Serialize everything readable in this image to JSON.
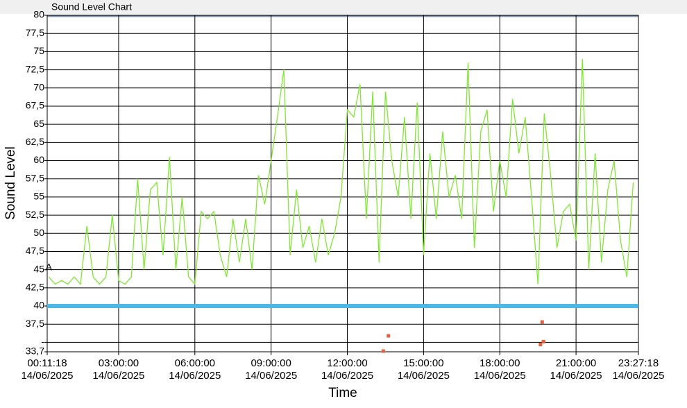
{
  "chart_data": {
    "type": "line",
    "title": "Sound Level Chart",
    "x_label": "Time",
    "y_label": "Sound Level",
    "xlim": [
      "2025-06-14T00:11:18",
      "2025-06-14T23:27:18"
    ],
    "xticks": [
      {
        "value": "2025-06-14T00:11:18",
        "label": "00:11:18\n14/06/2025"
      },
      {
        "value": "2025-06-14T03:00:00",
        "label": "03:00:00\n14/06/2025"
      },
      {
        "value": "2025-06-14T06:00:00",
        "label": "06:00:00\n14/06/2025"
      },
      {
        "value": "2025-06-14T09:00:00",
        "label": "09:00:00\n14/06/2025"
      },
      {
        "value": "2025-06-14T12:00:00",
        "label": "12:00:00\n14/06/2025"
      },
      {
        "value": "2025-06-14T15:00:00",
        "label": "15:00:00\n14/06/2025"
      },
      {
        "value": "2025-06-14T18:00:00",
        "label": "18:00:00\n14/06/2025"
      },
      {
        "value": "2025-06-14T21:00:00",
        "label": "21:00:00\n14/06/2025"
      },
      {
        "value": "2025-06-14T23:27:18",
        "label": "23:27:18\n14/06/2025"
      }
    ],
    "ylim": [
      33.7,
      80
    ],
    "yticks": [
      {
        "value": 33.7,
        "label": "33,7"
      },
      {
        "value": 35,
        "label": "-"
      },
      {
        "value": 37.5,
        "label": "37,5"
      },
      40,
      {
        "value": 42.5,
        "label": "42,5"
      },
      45,
      {
        "value": 47.5,
        "label": "47,5"
      },
      50,
      {
        "value": 52.5,
        "label": "52,5"
      },
      55,
      {
        "value": 57.5,
        "label": "57,5"
      },
      60,
      {
        "value": 62.5,
        "label": "62,5"
      },
      65,
      {
        "value": 67.5,
        "label": "67,5"
      },
      70,
      {
        "value": 72.5,
        "label": "72,5"
      },
      75,
      {
        "value": 77.5,
        "label": "77,5"
      },
      80
    ],
    "grid": true,
    "threshold": {
      "value": 40,
      "color": "#4cb8e8"
    },
    "annotations": [
      {
        "text": "A",
        "x": "2025-06-14T00:15:00",
        "y": 44.5
      }
    ],
    "color": "#7ee832",
    "x": [
      "2025-06-14T00:15:00",
      "2025-06-14T00:30:00",
      "2025-06-14T00:45:00",
      "2025-06-14T01:00:00",
      "2025-06-14T01:15:00",
      "2025-06-14T01:30:00",
      "2025-06-14T01:45:00",
      "2025-06-14T02:00:00",
      "2025-06-14T02:15:00",
      "2025-06-14T02:30:00",
      "2025-06-14T02:45:00",
      "2025-06-14T03:00:00",
      "2025-06-14T03:15:00",
      "2025-06-14T03:30:00",
      "2025-06-14T03:45:00",
      "2025-06-14T04:00:00",
      "2025-06-14T04:15:00",
      "2025-06-14T04:30:00",
      "2025-06-14T04:45:00",
      "2025-06-14T05:00:00",
      "2025-06-14T05:15:00",
      "2025-06-14T05:30:00",
      "2025-06-14T05:45:00",
      "2025-06-14T06:00:00",
      "2025-06-14T06:15:00",
      "2025-06-14T06:30:00",
      "2025-06-14T06:45:00",
      "2025-06-14T07:00:00",
      "2025-06-14T07:15:00",
      "2025-06-14T07:30:00",
      "2025-06-14T07:45:00",
      "2025-06-14T08:00:00",
      "2025-06-14T08:15:00",
      "2025-06-14T08:30:00",
      "2025-06-14T08:45:00",
      "2025-06-14T09:00:00",
      "2025-06-14T09:15:00",
      "2025-06-14T09:30:00",
      "2025-06-14T09:45:00",
      "2025-06-14T10:00:00",
      "2025-06-14T10:15:00",
      "2025-06-14T10:30:00",
      "2025-06-14T10:45:00",
      "2025-06-14T11:00:00",
      "2025-06-14T11:15:00",
      "2025-06-14T11:30:00",
      "2025-06-14T11:45:00",
      "2025-06-14T12:00:00",
      "2025-06-14T12:15:00",
      "2025-06-14T12:30:00",
      "2025-06-14T12:45:00",
      "2025-06-14T13:00:00",
      "2025-06-14T13:15:00",
      "2025-06-14T13:30:00",
      "2025-06-14T13:45:00",
      "2025-06-14T14:00:00",
      "2025-06-14T14:15:00",
      "2025-06-14T14:30:00",
      "2025-06-14T14:45:00",
      "2025-06-14T15:00:00",
      "2025-06-14T15:15:00",
      "2025-06-14T15:30:00",
      "2025-06-14T15:45:00",
      "2025-06-14T16:00:00",
      "2025-06-14T16:15:00",
      "2025-06-14T16:30:00",
      "2025-06-14T16:45:00",
      "2025-06-14T17:00:00",
      "2025-06-14T17:15:00",
      "2025-06-14T17:30:00",
      "2025-06-14T17:45:00",
      "2025-06-14T18:00:00",
      "2025-06-14T18:15:00",
      "2025-06-14T18:30:00",
      "2025-06-14T18:45:00",
      "2025-06-14T19:00:00",
      "2025-06-14T19:15:00",
      "2025-06-14T19:30:00",
      "2025-06-14T19:45:00",
      "2025-06-14T20:00:00",
      "2025-06-14T20:15:00",
      "2025-06-14T20:30:00",
      "2025-06-14T20:45:00",
      "2025-06-14T21:00:00",
      "2025-06-14T21:15:00",
      "2025-06-14T21:30:00",
      "2025-06-14T21:45:00",
      "2025-06-14T22:00:00",
      "2025-06-14T22:15:00",
      "2025-06-14T22:30:00",
      "2025-06-14T22:45:00",
      "2025-06-14T23:00:00",
      "2025-06-14T23:15:00"
    ],
    "values": [
      44,
      43,
      43.5,
      43,
      44,
      43,
      51,
      44,
      43,
      44,
      52.5,
      43.5,
      43,
      44,
      57.5,
      45,
      56,
      57,
      47,
      60.5,
      45,
      55,
      44,
      43,
      53,
      52,
      53,
      47,
      44,
      52,
      46,
      52,
      45,
      58,
      54,
      60,
      66,
      72.5,
      47,
      56,
      48,
      51,
      46,
      52,
      47,
      50,
      55,
      67,
      66,
      70.5,
      52,
      69.5,
      46,
      69.5,
      60,
      55,
      66,
      52,
      68,
      47,
      61,
      52,
      64,
      55,
      58,
      52,
      73.5,
      48,
      64,
      67,
      53,
      60,
      55,
      68.5,
      61,
      66,
      55,
      43,
      66.5,
      58,
      48,
      53,
      54,
      49,
      74,
      45,
      61,
      46,
      56,
      60,
      49,
      44,
      57
    ],
    "low_points": {
      "color": "#e06040",
      "x": [
        "2025-06-14T13:25:00",
        "2025-06-14T13:37:00",
        "2025-06-14T19:36:00",
        "2025-06-14T19:40:00",
        "2025-06-14T19:43:00"
      ],
      "values": [
        33.8,
        35.9,
        34.7,
        37.8,
        35.1
      ]
    }
  }
}
